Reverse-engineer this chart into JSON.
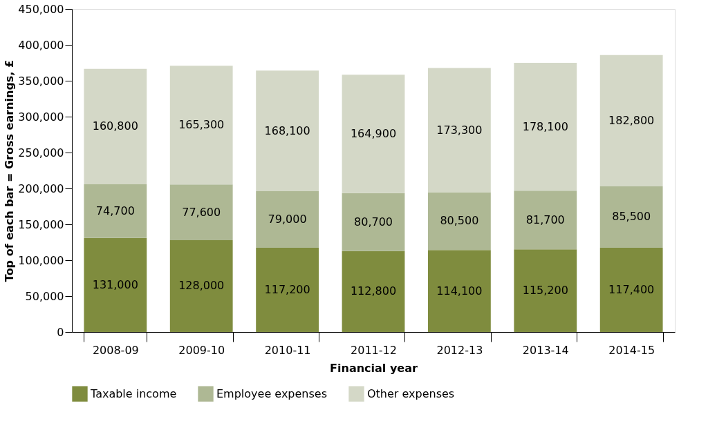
{
  "chart_data": {
    "type": "bar",
    "stacked": true,
    "xlabel": "Financial year",
    "ylabel": "Top of each bar = Gross earnings, £",
    "categories": [
      "2008-09",
      "2009-10",
      "2010-11",
      "2011-12",
      "2012-13",
      "2013-14",
      "2014-15"
    ],
    "series": [
      {
        "name": "Taxable income",
        "color": "#7f8c3e",
        "values": [
          131000,
          128000,
          117200,
          112800,
          114100,
          115200,
          117400
        ],
        "value_labels": [
          "131,000",
          "128,000",
          "117,200",
          "112,800",
          "114,100",
          "115,200",
          "117,400"
        ]
      },
      {
        "name": "Employee expenses",
        "color": "#aeb894",
        "values": [
          74700,
          77600,
          79000,
          80700,
          80500,
          81700,
          85500
        ],
        "value_labels": [
          "74,700",
          "77,600",
          "79,000",
          "80,700",
          "80,500",
          "81,700",
          "85,500"
        ]
      },
      {
        "name": "Other expenses",
        "color": "#d4d8c7",
        "values": [
          160800,
          165300,
          168100,
          164900,
          173300,
          178100,
          182800
        ],
        "value_labels": [
          "160,800",
          "165,300",
          "168,100",
          "164,900",
          "173,300",
          "178,100",
          "182,800"
        ]
      }
    ],
    "ylim": [
      0,
      450000
    ],
    "yticks": [
      0,
      {
        "value": 50000,
        "label": "50,000"
      },
      {
        "value": 100000,
        "label": "100,000"
      },
      {
        "value": 150000,
        "label": "150,000"
      },
      {
        "value": 200000,
        "label": "200,000"
      },
      {
        "value": 250000,
        "label": "250,000"
      },
      {
        "value": 300000,
        "label": "300,000"
      },
      {
        "value": 350000,
        "label": "350,000"
      },
      {
        "value": 400000,
        "label": "400,000"
      },
      {
        "value": 450000,
        "label": "450,000"
      }
    ],
    "legend": "bottom",
    "grid": false
  }
}
